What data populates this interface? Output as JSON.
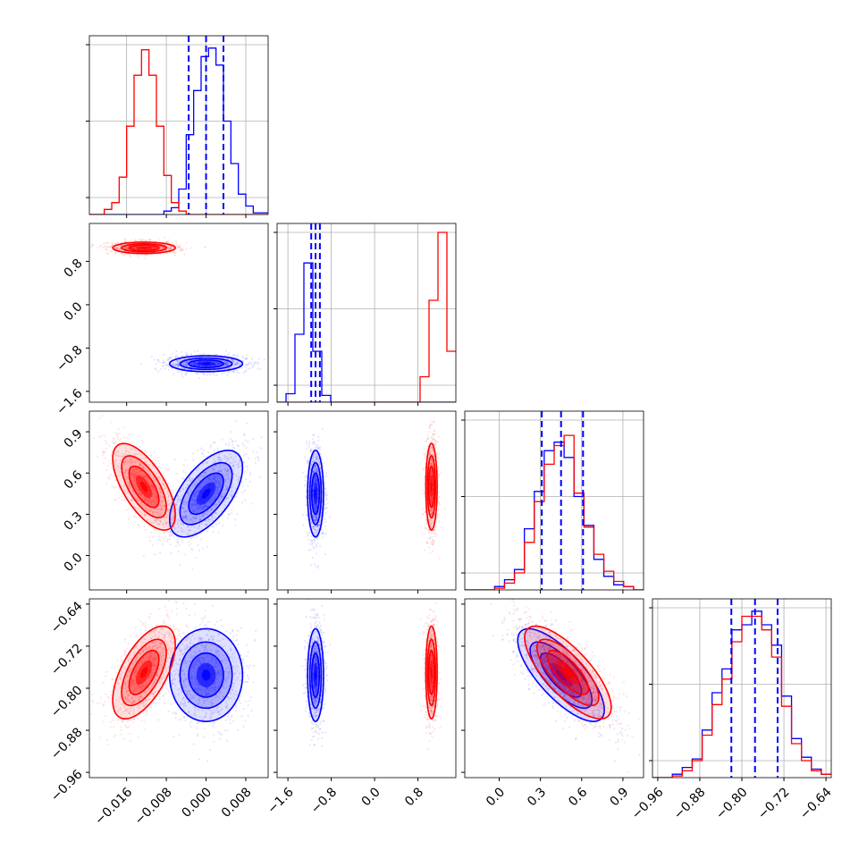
{
  "chart_data": {
    "type": "corner",
    "parameters": [
      {
        "range": [
          -0.0235,
          0.0125
        ],
        "ticks": [
          {
            "v": -0.016,
            "label": "−0.016"
          },
          {
            "v": -0.008,
            "label": "−0.008"
          },
          {
            "v": 0.0,
            "label": "0.000"
          },
          {
            "v": 0.008,
            "label": "0.008"
          }
        ],
        "quantiles": [
          -0.0035,
          0.0,
          0.0035
        ],
        "hist_blue": [
          0,
          0,
          0,
          0,
          0,
          0,
          0,
          0,
          0,
          0,
          0.02,
          0.04,
          0.15,
          0.47,
          0.73,
          0.93,
          0.98,
          0.88,
          0.55,
          0.3,
          0.12,
          0.05,
          0.01,
          0.01
        ],
        "hist_red": [
          0,
          0,
          0.03,
          0.07,
          0.22,
          0.52,
          0.82,
          0.97,
          0.82,
          0.52,
          0.23,
          0.07,
          0.02,
          0,
          0,
          0,
          0,
          0,
          0,
          0,
          0,
          0,
          0,
          0
        ]
      },
      {
        "range": [
          -1.8,
          1.5
        ],
        "ticks": [
          {
            "v": -1.6,
            "label": "−1.6"
          },
          {
            "v": -0.8,
            "label": "−0.8"
          },
          {
            "v": 0.0,
            "label": "0.0"
          },
          {
            "v": 0.8,
            "label": "0.8"
          }
        ],
        "quantiles": [
          -1.17,
          -1.09,
          -1.01
        ],
        "hist_blue": [
          0,
          0.05,
          0.4,
          0.82,
          0.3,
          0.04,
          0,
          0,
          0,
          0,
          0,
          0,
          0,
          0,
          0,
          0,
          0,
          0,
          0,
          0
        ],
        "hist_red": [
          0,
          0,
          0,
          0,
          0,
          0,
          0,
          0,
          0,
          0,
          0,
          0,
          0,
          0,
          0,
          0,
          0.15,
          0.6,
          1.0,
          0.3
        ]
      },
      {
        "range": [
          -0.25,
          1.05
        ],
        "ticks": [
          {
            "v": 0.0,
            "label": "0.0"
          },
          {
            "v": 0.3,
            "label": "0.3"
          },
          {
            "v": 0.6,
            "label": "0.6"
          },
          {
            "v": 0.9,
            "label": "0.9"
          }
        ],
        "quantiles": [
          0.31,
          0.45,
          0.61
        ],
        "hist_blue": [
          0,
          0,
          0,
          0.02,
          0.06,
          0.12,
          0.36,
          0.58,
          0.82,
          0.87,
          0.78,
          0.55,
          0.38,
          0.18,
          0.08,
          0.03,
          0.02,
          0
        ],
        "hist_red": [
          0,
          0,
          0,
          0.01,
          0.04,
          0.1,
          0.28,
          0.52,
          0.74,
          0.85,
          0.91,
          0.57,
          0.37,
          0.21,
          0.11,
          0.05,
          0.02,
          0
        ]
      },
      {
        "range": [
          -0.97,
          -0.63
        ],
        "ticks": [
          {
            "v": -0.96,
            "label": "−0.96"
          },
          {
            "v": -0.88,
            "label": "−0.88"
          },
          {
            "v": -0.8,
            "label": "−0.80"
          },
          {
            "v": -0.72,
            "label": "−0.72"
          },
          {
            "v": -0.64,
            "label": "−0.64"
          }
        ],
        "quantiles": [
          -0.82,
          -0.775,
          -0.732
        ],
        "hist_blue": [
          0,
          0,
          0.02,
          0.06,
          0.11,
          0.28,
          0.5,
          0.64,
          0.87,
          0.9,
          0.98,
          0.9,
          0.78,
          0.48,
          0.23,
          0.12,
          0.05,
          0.02
        ],
        "hist_red": [
          0,
          0,
          0.01,
          0.04,
          0.1,
          0.25,
          0.43,
          0.58,
          0.8,
          0.95,
          0.95,
          0.87,
          0.71,
          0.42,
          0.2,
          0.1,
          0.04,
          0.02
        ]
      }
    ],
    "series": [
      {
        "color": "#0000ff",
        "means": [
          0.0,
          -1.09,
          0.45,
          -0.775
        ],
        "sds": [
          0.0035,
          0.07,
          0.15,
          0.042
        ],
        "corr": [
          [
            1,
            0,
            0.6,
            0
          ],
          [
            0,
            1,
            0,
            0
          ],
          [
            0.6,
            0,
            1,
            -0.75
          ],
          [
            0,
            0,
            -0.75,
            1
          ]
        ]
      },
      {
        "color": "#ff0000",
        "means": [
          -0.0125,
          1.05,
          0.5,
          -0.77
        ],
        "sds": [
          0.003,
          0.05,
          0.15,
          0.042
        ],
        "corr": [
          [
            1,
            0,
            -0.65,
            0.6
          ],
          [
            0,
            1,
            0,
            0
          ],
          [
            -0.65,
            0,
            1,
            -0.75
          ],
          [
            0.6,
            0,
            -0.75,
            1
          ]
        ]
      }
    ],
    "hist_yticks": [
      0.1,
      0.55,
      1.0
    ],
    "grid": true,
    "quantile_color": "#0000ff"
  }
}
